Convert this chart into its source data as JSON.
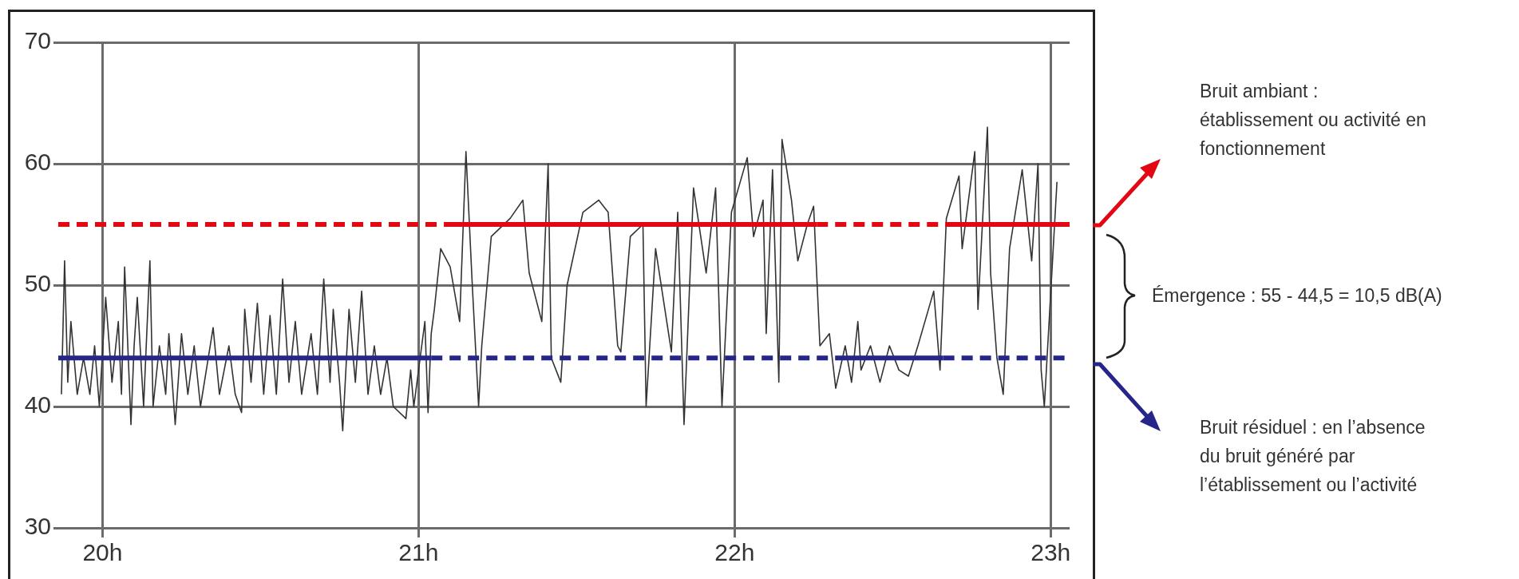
{
  "chart_data": {
    "type": "line",
    "xlim": [
      19.86,
      23.06
    ],
    "ylim": [
      30,
      70
    ],
    "xticks": [
      {
        "value": 20,
        "label": "20h"
      },
      {
        "value": 21,
        "label": "21h"
      },
      {
        "value": 22,
        "label": "22h"
      },
      {
        "value": 23,
        "label": "23h"
      }
    ],
    "yticks": [
      30,
      40,
      50,
      60,
      70
    ],
    "grid": true,
    "marker": "none",
    "series": [
      {
        "color": "#333333",
        "line_style": "solid",
        "x": [
          19.87,
          19.88,
          19.89,
          19.9,
          19.92,
          19.94,
          19.96,
          19.975,
          19.99,
          20.01,
          20.03,
          20.05,
          20.06,
          20.07,
          20.09,
          20.1,
          20.11,
          20.13,
          20.15,
          20.16,
          20.18,
          20.2,
          20.21,
          20.23,
          20.25,
          20.27,
          20.29,
          20.31,
          20.35,
          20.37,
          20.4,
          20.42,
          20.44,
          20.45,
          20.47,
          20.49,
          20.51,
          20.53,
          20.55,
          20.57,
          20.59,
          20.61,
          20.63,
          20.66,
          20.68,
          20.7,
          20.72,
          20.73,
          20.75,
          20.76,
          20.78,
          20.8,
          20.82,
          20.84,
          20.86,
          20.88,
          20.9,
          20.92,
          20.96,
          20.975,
          20.985,
          21.02,
          21.03,
          21.04,
          21.05,
          21.07,
          21.1,
          21.13,
          21.15,
          21.17,
          21.19,
          21.2,
          21.23,
          21.29,
          21.33,
          21.35,
          21.39,
          21.41,
          21.42,
          21.45,
          21.47,
          21.52,
          21.57,
          21.6,
          21.63,
          21.64,
          21.67,
          21.71,
          21.72,
          21.75,
          21.8,
          21.82,
          21.84,
          21.87,
          21.91,
          21.94,
          21.96,
          21.99,
          22.04,
          22.06,
          22.09,
          22.1,
          22.12,
          22.14,
          22.15,
          22.18,
          22.2,
          22.23,
          22.25,
          22.27,
          22.3,
          22.32,
          22.35,
          22.37,
          22.39,
          22.4,
          22.43,
          22.46,
          22.49,
          22.52,
          22.55,
          22.58,
          22.63,
          22.65,
          22.67,
          22.71,
          22.72,
          22.76,
          22.77,
          22.8,
          22.81,
          22.83,
          22.85,
          22.87,
          22.91,
          22.94,
          22.96,
          22.97,
          22.98,
          23.02
        ],
        "values": [
          41,
          52,
          42,
          47,
          41,
          44,
          41,
          45,
          40,
          49,
          42,
          47,
          41,
          51.5,
          38.5,
          45,
          49,
          40,
          52,
          40,
          45,
          41,
          46,
          38.5,
          46,
          41,
          45,
          40,
          46.5,
          41,
          45,
          41,
          39.5,
          48,
          42,
          48.5,
          41,
          47.5,
          41,
          50.5,
          42,
          47,
          41,
          46,
          41,
          50.5,
          42,
          48,
          42,
          38,
          48,
          42,
          49.5,
          41,
          45,
          41,
          44,
          40,
          39,
          43,
          40,
          47,
          39.5,
          46,
          48,
          53,
          51.5,
          47,
          61,
          50,
          40,
          45,
          54,
          55.5,
          57,
          51,
          47,
          60,
          44,
          42,
          50,
          56,
          57,
          56,
          45,
          44.5,
          54,
          55,
          40,
          53,
          44.5,
          56,
          38.5,
          58,
          51,
          58,
          40,
          56,
          60.5,
          54,
          57,
          46,
          59.5,
          42,
          62,
          57,
          52,
          55,
          56.5,
          45,
          46,
          41.5,
          45,
          42,
          47,
          43,
          45,
          42,
          45,
          43,
          42.5,
          45,
          49.5,
          43,
          55.5,
          59,
          53,
          61,
          48,
          63,
          51,
          44,
          41,
          53,
          59.5,
          52,
          60,
          43,
          40,
          58.5
        ]
      },
      {
        "color": "#e30613",
        "line_style": "dashed",
        "x": [
          19.86,
          21.08
        ],
        "values": [
          55,
          55
        ]
      },
      {
        "color": "#e30613",
        "line_style": "solid",
        "x": [
          21.08,
          22.26
        ],
        "values": [
          55,
          55
        ]
      },
      {
        "color": "#e30613",
        "line_style": "dashed",
        "x": [
          22.26,
          22.67
        ],
        "values": [
          55,
          55
        ]
      },
      {
        "color": "#e30613",
        "line_style": "solid",
        "x": [
          22.67,
          23.06
        ],
        "values": [
          55,
          55
        ]
      },
      {
        "color": "#25258a",
        "line_style": "solid",
        "x": [
          19.86,
          21.04
        ],
        "values": [
          44,
          44
        ]
      },
      {
        "color": "#25258a",
        "line_style": "dashed",
        "x": [
          21.04,
          22.33
        ],
        "values": [
          44,
          44
        ]
      },
      {
        "color": "#25258a",
        "line_style": "solid",
        "x": [
          22.33,
          22.66
        ],
        "values": [
          44,
          44
        ]
      },
      {
        "color": "#25258a",
        "line_style": "dashed",
        "x": [
          22.66,
          23.06
        ],
        "values": [
          44,
          44
        ]
      }
    ],
    "annotations": [
      "Bruit ambiant :\nétablissement ou activité en\nfonctionnement",
      "Émergence : 55 - 44,5 = 10,5 dB(A)",
      "Bruit résiduel : en l’absence\ndu bruit généré par\nl’établissement ou l’activité"
    ]
  }
}
